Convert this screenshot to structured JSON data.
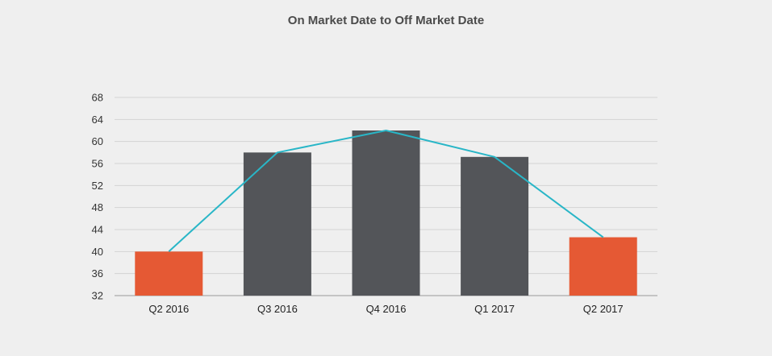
{
  "chart_data": {
    "type": "bar",
    "title": "On Market Date to Off Market Date",
    "xlabel": "",
    "ylabel": "",
    "categories": [
      "Q2 2016",
      "Q3 2016",
      "Q4 2016",
      "Q1 2017",
      "Q2 2017"
    ],
    "series": [
      {
        "kind": "bar",
        "values": [
          40,
          58,
          62,
          57.2,
          42.6
        ]
      },
      {
        "kind": "line",
        "values": [
          40,
          58,
          62,
          57.2,
          42.6
        ]
      }
    ],
    "bar_colors": [
      "#e55934",
      "#535559",
      "#535559",
      "#535559",
      "#e55934"
    ],
    "line_color": "#29b6c7",
    "yticks": [
      32,
      36,
      40,
      44,
      48,
      52,
      56,
      60,
      64,
      68
    ],
    "ylim": [
      32,
      68
    ],
    "grid": true,
    "legend": "none"
  }
}
